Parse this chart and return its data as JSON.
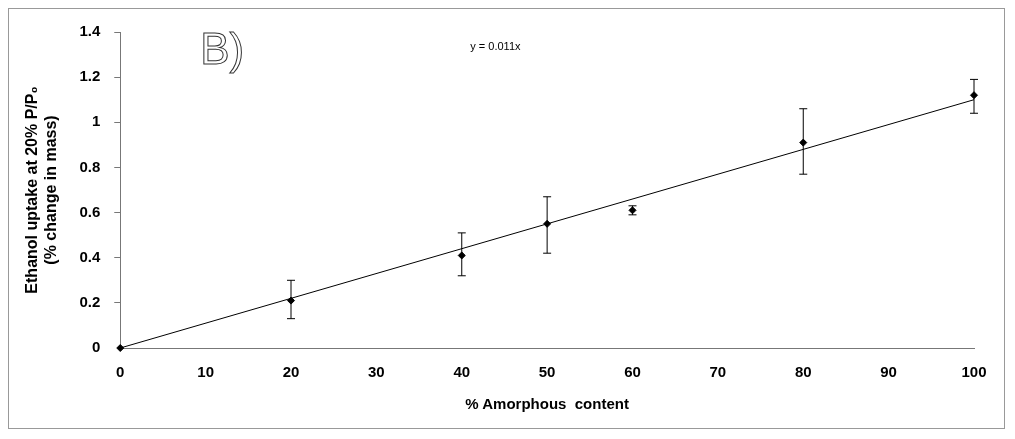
{
  "chart_data": {
    "type": "scatter",
    "xlabel": "% Amorphous  content",
    "ylabel": "Ethanol uptake at 20% P/P₀\n(% change in mass)",
    "annotations": [
      "B)",
      "y = 0.011x"
    ],
    "xlim": [
      0,
      100
    ],
    "xticks": [
      0,
      10,
      20,
      30,
      40,
      50,
      60,
      70,
      80,
      90,
      100
    ],
    "ylim": [
      0,
      1.4
    ],
    "yticks": [
      0,
      0.2,
      0.4,
      0.6,
      0.8,
      1,
      1.2,
      1.4
    ],
    "grid": false,
    "legend": false,
    "marker": "diamond",
    "series": [
      {
        "type": "scatter",
        "color": "#000000",
        "x": [
          0,
          20,
          40,
          50,
          60,
          80,
          100
        ],
        "values": [
          0,
          0.21,
          0.41,
          0.55,
          0.61,
          0.91,
          1.12
        ],
        "errors": [
          null,
          [
            0.13,
            0.3
          ],
          [
            0.32,
            0.51
          ],
          [
            0.42,
            0.67
          ],
          [
            0.59,
            0.63
          ],
          [
            0.77,
            1.06
          ],
          [
            1.04,
            1.19
          ]
        ]
      },
      {
        "type": "line",
        "color": "#000000",
        "x": [
          0,
          100
        ],
        "values": [
          0,
          1.1
        ],
        "marker": "none",
        "line_style": "solid"
      }
    ]
  }
}
